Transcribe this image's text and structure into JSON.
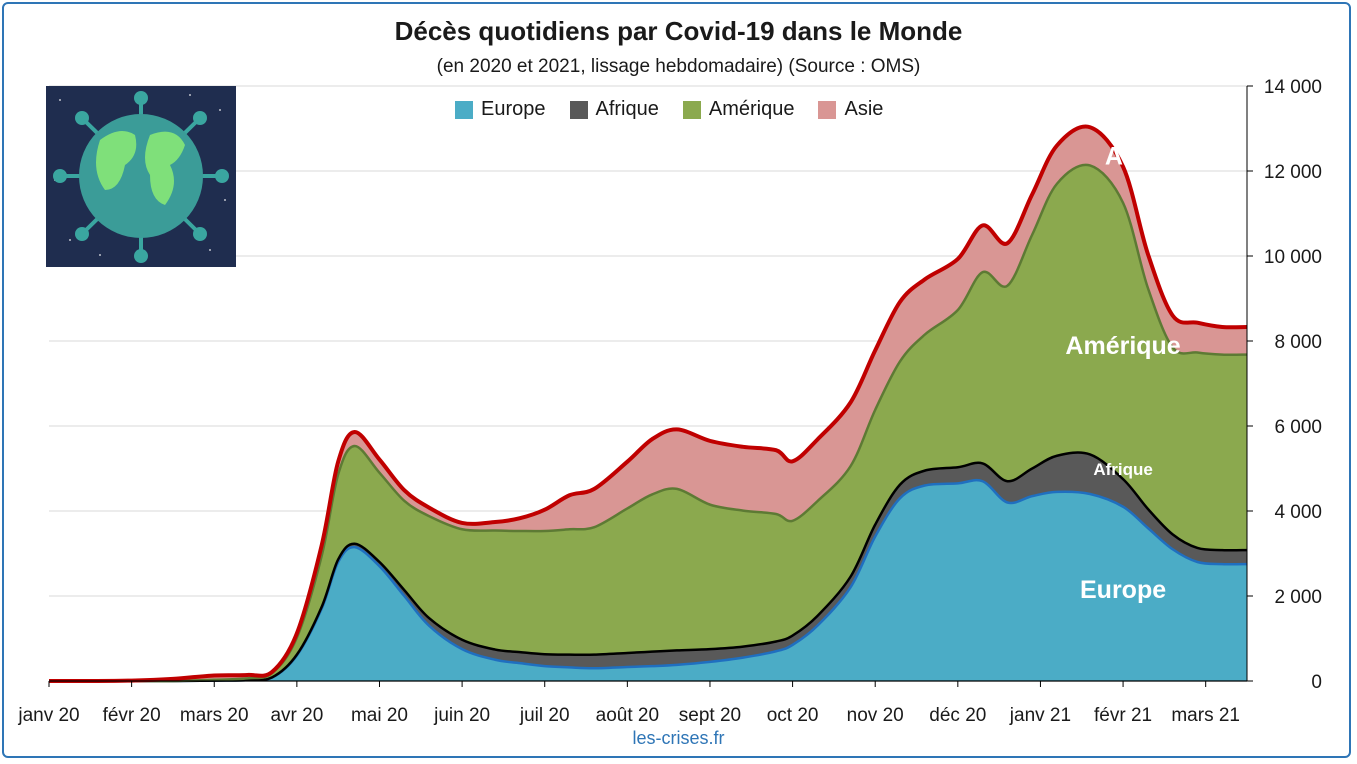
{
  "chart_data": {
    "type": "area",
    "title": "Décès quotidiens par Covid-19 dans le Monde",
    "subtitle": "(en 2020 et 2021, lissage hebdomadaire) (Source : OMS)",
    "source": "les-crises.fr",
    "x_ticks": [
      "janv 20",
      "févr 20",
      "mars 20",
      "avr 20",
      "mai 20",
      "juin 20",
      "juil 20",
      "août 20",
      "sept 20",
      "oct 20",
      "nov 20",
      "déc 20",
      "janv 21",
      "févr 21",
      "mars 21"
    ],
    "y_ticks": [
      "0",
      "2 000",
      "4 000",
      "6 000",
      "8 000",
      "10 000",
      "12 000",
      "14 000"
    ],
    "ylim": [
      0,
      14000
    ],
    "x_unit": "months since janv 20",
    "xlim": [
      0,
      14.5
    ],
    "x": [
      0,
      0.5,
      1,
      1.5,
      2,
      2.4,
      2.7,
      3,
      3.3,
      3.5,
      3.7,
      4,
      4.3,
      4.6,
      5,
      5.4,
      5.7,
      6,
      6.3,
      6.6,
      7,
      7.3,
      7.6,
      8,
      8.4,
      8.8,
      9,
      9.3,
      9.7,
      10,
      10.3,
      10.6,
      11,
      11.3,
      11.6,
      11.9,
      12.2,
      12.6,
      13,
      13.3,
      13.6,
      13.9,
      14.2,
      14.5
    ],
    "series": [
      {
        "name": "Europe",
        "color": "#4bacc6",
        "values": [
          0,
          0,
          0,
          0,
          10,
          20,
          80,
          600,
          1700,
          2800,
          3150,
          2700,
          2000,
          1300,
          750,
          500,
          420,
          350,
          320,
          300,
          330,
          350,
          380,
          450,
          550,
          700,
          850,
          1300,
          2200,
          3400,
          4300,
          4600,
          4650,
          4700,
          4200,
          4350,
          4450,
          4400,
          4100,
          3600,
          3100,
          2800,
          2750,
          2750
        ]
      },
      {
        "name": "Afrique",
        "color": "#595959",
        "values": [
          0,
          0,
          0,
          0,
          0,
          2,
          5,
          20,
          40,
          60,
          80,
          100,
          140,
          180,
          220,
          240,
          260,
          280,
          300,
          320,
          330,
          340,
          340,
          300,
          260,
          230,
          220,
          230,
          250,
          280,
          320,
          350,
          380,
          420,
          500,
          650,
          850,
          930,
          650,
          450,
          350,
          330,
          330,
          330
        ]
      },
      {
        "name": "Amérique",
        "color": "#8ba94e",
        "values": [
          0,
          0,
          0,
          0,
          20,
          40,
          100,
          400,
          1200,
          2000,
          2300,
          2100,
          2100,
          2400,
          2600,
          2800,
          2850,
          2900,
          2950,
          3000,
          3400,
          3700,
          3800,
          3400,
          3200,
          3000,
          2700,
          2700,
          2600,
          2700,
          2900,
          3200,
          3700,
          4500,
          4600,
          5500,
          6400,
          6800,
          6500,
          5200,
          4400,
          4600,
          4600,
          4600
        ]
      },
      {
        "name": "Asie",
        "color": "#d99694",
        "values": [
          0,
          0,
          10,
          50,
          100,
          80,
          30,
          100,
          250,
          300,
          330,
          310,
          250,
          200,
          150,
          200,
          300,
          500,
          800,
          900,
          1100,
          1300,
          1400,
          1500,
          1500,
          1500,
          1400,
          1450,
          1500,
          1400,
          1400,
          1300,
          1200,
          1100,
          1000,
          950,
          900,
          900,
          850,
          800,
          750,
          700,
          650,
          650
        ]
      }
    ],
    "labels": [
      {
        "text": "Europe",
        "x": 13,
        "y": 1950,
        "size": "large"
      },
      {
        "text": "Afrique",
        "x": 13,
        "y": 4850,
        "size": "small"
      },
      {
        "text": "Amérique",
        "x": 13,
        "y": 7700,
        "size": "large"
      },
      {
        "text": "Asie",
        "x": 13.1,
        "y": 12150,
        "size": "large"
      }
    ],
    "total_line_color": "#c00000",
    "grid": true,
    "legend": "top-center"
  }
}
